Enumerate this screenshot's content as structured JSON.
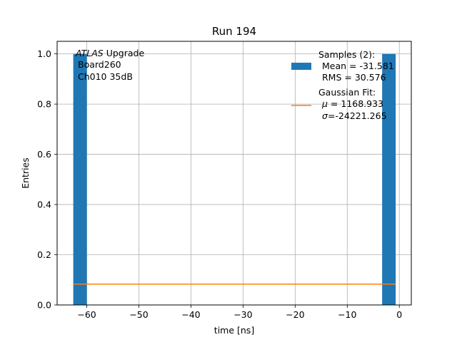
{
  "chart_data": {
    "type": "bar",
    "title": "Run 194",
    "xlabel": "time [ns]",
    "ylabel": "Entries",
    "xlim": [
      -65.7,
      2.3
    ],
    "ylim": [
      0,
      1.05
    ],
    "xticks": [
      -60,
      -50,
      -40,
      -30,
      -20,
      -10,
      0
    ],
    "xtick_labels": [
      "−60",
      "−50",
      "−40",
      "−30",
      "−20",
      "−10",
      "0"
    ],
    "yticks": [
      0.0,
      0.2,
      0.4,
      0.6,
      0.8,
      1.0
    ],
    "ytick_labels": [
      "0.0",
      "0.2",
      "0.4",
      "0.6",
      "0.8",
      "1.0"
    ],
    "grid": true,
    "bars": [
      {
        "x0": -62.6,
        "x1": -60.0,
        "value": 1.0
      },
      {
        "x0": -3.3,
        "x1": -0.7,
        "value": 1.0
      }
    ],
    "fit_line": {
      "x": [
        -62.6,
        -0.7
      ],
      "y": [
        0.083,
        0.083
      ]
    },
    "colors": {
      "bars": "#1f77b4",
      "fit": "#ff7f0e",
      "grid": "#b0b0b0"
    },
    "annotation": {
      "experiment_italic": "ATLAS",
      "experiment_rest": " Upgrade",
      "line2": "Board260",
      "line3": "Ch010 35dB"
    },
    "legend": {
      "placement": "top-right",
      "samples_title": "Samples (2):",
      "samples_mean": "Mean = -31.581",
      "samples_rms": "RMS = 30.576",
      "fit_title": "Gaussian Fit:",
      "fit_mu_symbol": "μ",
      "fit_mu_value": " = 1168.933",
      "fit_sigma_symbol": "σ",
      "fit_sigma_value": "=-24221.265"
    }
  }
}
